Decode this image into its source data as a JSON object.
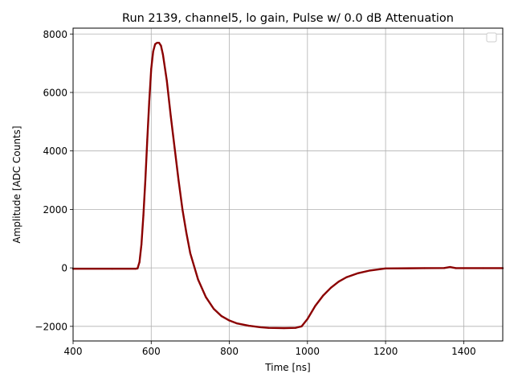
{
  "chart_data": {
    "type": "scatter",
    "title": "Run 2139, channel5, lo gain, Pulse w/ 0.0 dB Attenuation",
    "xlabel": "Time [ns]",
    "ylabel": "Amplitude [ADC Counts]",
    "xlim": [
      400,
      1500
    ],
    "ylim": [
      -2500,
      8200
    ],
    "xticks": [
      400,
      600,
      800,
      1000,
      1200,
      1400
    ],
    "yticks": [
      -2000,
      0,
      2000,
      4000,
      6000,
      8000
    ],
    "xtick_labels": [
      "400",
      "600",
      "800",
      "1000",
      "1200",
      "1400"
    ],
    "ytick_labels": [
      "−2000",
      "0",
      "2000",
      "4000",
      "6000",
      "8000"
    ],
    "grid": true,
    "legend": "top-right (empty)",
    "color": "#8b0000",
    "series": [
      {
        "x": [
          400,
          500,
          560,
          565,
          570,
          575,
          580,
          585,
          590,
          595,
          600,
          605,
          610,
          615,
          620,
          625,
          630,
          640,
          650,
          660,
          670,
          680,
          690,
          700,
          720,
          740,
          760,
          780,
          800,
          820,
          850,
          880,
          900,
          940,
          970,
          985,
          1000,
          1020,
          1040,
          1060,
          1080,
          1100,
          1130,
          1160,
          1200,
          1300,
          1350,
          1365,
          1380,
          1450,
          1500
        ],
        "y": [
          -30,
          -30,
          -30,
          -20,
          200,
          800,
          1800,
          3000,
          4400,
          5700,
          6800,
          7400,
          7650,
          7700,
          7700,
          7600,
          7300,
          6400,
          5200,
          4100,
          3000,
          2000,
          1200,
          500,
          -400,
          -1000,
          -1400,
          -1650,
          -1800,
          -1900,
          -1980,
          -2030,
          -2050,
          -2060,
          -2050,
          -2000,
          -1750,
          -1300,
          -950,
          -680,
          -470,
          -320,
          -180,
          -90,
          -20,
          -10,
          -5,
          30,
          -10,
          -10,
          -10
        ]
      }
    ]
  }
}
